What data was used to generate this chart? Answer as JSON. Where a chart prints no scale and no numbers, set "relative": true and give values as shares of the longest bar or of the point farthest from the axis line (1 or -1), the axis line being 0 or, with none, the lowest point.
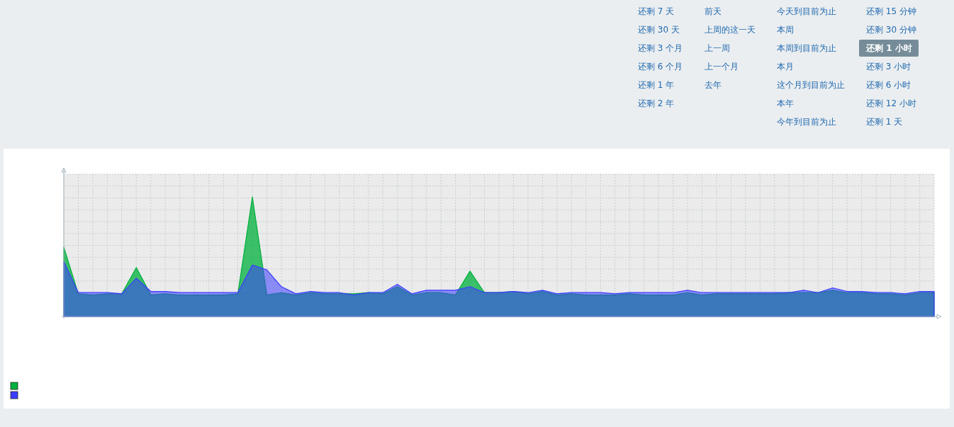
{
  "chart_data": {
    "type": "area",
    "relative": true,
    "grid": true,
    "categories": [
      null,
      null,
      null,
      null,
      null,
      null,
      null,
      null,
      null,
      null,
      null,
      null,
      null,
      null,
      null,
      null,
      null,
      null,
      null,
      null,
      null,
      null,
      null,
      null,
      null,
      null,
      null,
      null,
      null,
      null,
      null,
      null,
      null,
      null,
      null,
      null,
      null,
      null,
      null,
      null,
      null,
      null,
      null,
      null,
      null,
      null,
      null,
      null,
      null,
      null,
      null,
      null,
      null,
      null,
      null,
      null,
      null,
      null,
      null,
      null,
      null
    ],
    "series": [
      {
        "color": "#00b03c",
        "values": [
          0.58,
          0.19,
          0.18,
          0.19,
          0.19,
          0.41,
          0.18,
          0.19,
          0.18,
          0.18,
          0.18,
          0.18,
          0.19,
          1.0,
          0.18,
          0.2,
          0.18,
          0.2,
          0.19,
          0.19,
          0.19,
          0.2,
          0.19,
          0.25,
          0.18,
          0.2,
          0.2,
          0.18,
          0.38,
          0.2,
          0.2,
          0.21,
          0.19,
          0.21,
          0.18,
          0.19,
          0.18,
          0.18,
          0.18,
          0.19,
          0.18,
          0.18,
          0.18,
          0.2,
          0.18,
          0.19,
          0.19,
          0.19,
          0.19,
          0.19,
          0.2,
          0.2,
          0.2,
          0.22,
          0.2,
          0.2,
          0.19,
          0.19,
          0.18,
          0.2,
          0.2
        ]
      },
      {
        "color": "#3c3cff",
        "values": [
          0.46,
          0.2,
          0.2,
          0.2,
          0.19,
          0.32,
          0.21,
          0.21,
          0.2,
          0.2,
          0.2,
          0.2,
          0.2,
          0.43,
          0.39,
          0.25,
          0.19,
          0.21,
          0.2,
          0.2,
          0.18,
          0.2,
          0.2,
          0.27,
          0.19,
          0.22,
          0.22,
          0.22,
          0.25,
          0.2,
          0.2,
          0.21,
          0.2,
          0.22,
          0.19,
          0.2,
          0.2,
          0.2,
          0.19,
          0.2,
          0.2,
          0.2,
          0.2,
          0.22,
          0.2,
          0.2,
          0.2,
          0.2,
          0.2,
          0.2,
          0.2,
          0.22,
          0.2,
          0.24,
          0.21,
          0.21,
          0.2,
          0.2,
          0.19,
          0.21,
          0.21
        ]
      }
    ],
    "annotations": [
      "还剩 7 天",
      "还剩 30 天",
      "还剩 3 个月",
      "还剩 6 个月",
      "还剩 1 年",
      "还剩 2 年",
      "前天",
      "上周的这一天",
      "上一周",
      "上一个月",
      "去年",
      "今天到目前为止",
      "本周",
      "本周到目前为止",
      "本月",
      "这个月到目前为止",
      "本年",
      "今年到目前为止",
      "还剩 15 分钟",
      "还剩 30 分钟",
      "还剩 1 小时",
      "还剩 3 小时",
      "还剩 6 小时",
      "还剩 12 小时",
      "还剩 1 天"
    ]
  }
}
